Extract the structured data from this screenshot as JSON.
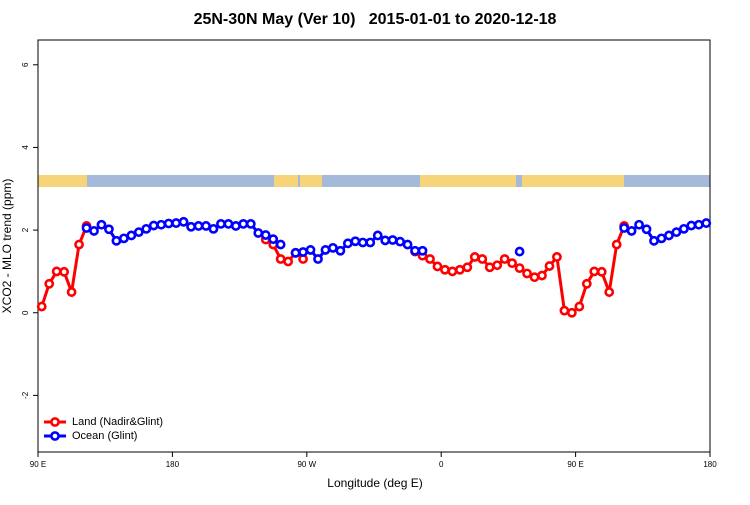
{
  "chart_data": {
    "type": "line",
    "title": "25N-30N May (Ver 10)   2015-01-01 to 2020-12-18",
    "x_label": "Longitude (deg E)",
    "y_label": "XCO2 - MLO trend (ppm)",
    "x": [
      92.5,
      97.5,
      102.5,
      107.5,
      112.5,
      117.5,
      122.5,
      127.5,
      132.5,
      137.5,
      142.5,
      147.5,
      152.5,
      157.5,
      162.5,
      167.5,
      172.5,
      177.5,
      182.5,
      187.5,
      192.5,
      197.5,
      202.5,
      207.5,
      212.5,
      217.5,
      222.5,
      227.5,
      232.5,
      237.5,
      242.5,
      247.5,
      252.5,
      257.5,
      262.5,
      267.5,
      272.5,
      277.5,
      282.5,
      287.5,
      292.5,
      297.5,
      302.5,
      307.5,
      312.5,
      317.5,
      322.5,
      327.5,
      332.5,
      337.5,
      342.5,
      347.5,
      352.5,
      357.5,
      362.5,
      367.5,
      372.5,
      377.5,
      382.5,
      387.5,
      392.5,
      397.5,
      402.5,
      407.5,
      412.5,
      417.5,
      422.5,
      427.5,
      432.5,
      437.5,
      442.5,
      447.5,
      452.5,
      457.5,
      462.5,
      467.5,
      472.5,
      477.5,
      482.5,
      487.5,
      492.5,
      497.5,
      502.5,
      507.5,
      512.5,
      517.5,
      522.5,
      527.5,
      532.5,
      537.5
    ],
    "series": [
      {
        "name": "Land (Nadir&Glint)",
        "color": "#ff0000",
        "values": [
          0.15,
          0.7,
          1.0,
          0.99,
          0.5,
          1.65,
          2.1,
          null,
          null,
          null,
          null,
          null,
          null,
          null,
          null,
          null,
          null,
          null,
          null,
          null,
          null,
          null,
          null,
          null,
          null,
          null,
          null,
          null,
          null,
          null,
          1.77,
          1.65,
          1.3,
          1.24,
          1.45,
          1.3,
          null,
          null,
          null,
          null,
          null,
          null,
          null,
          null,
          null,
          null,
          null,
          null,
          null,
          null,
          1.48,
          1.38,
          1.3,
          1.12,
          1.04,
          1.0,
          1.04,
          1.1,
          1.35,
          1.3,
          1.1,
          1.15,
          1.3,
          1.2,
          1.08,
          0.95,
          0.86,
          0.9,
          1.13,
          1.35,
          0.05,
          0.0,
          0.15,
          0.7,
          1.0,
          0.99,
          0.5,
          1.65,
          2.1,
          null,
          null,
          null,
          null,
          null,
          null,
          null,
          null,
          null,
          null,
          null
        ]
      },
      {
        "name": "Ocean (Glint)",
        "color": "#0000ff",
        "values": [
          null,
          null,
          null,
          null,
          null,
          null,
          2.05,
          1.98,
          2.13,
          2.02,
          1.74,
          1.8,
          1.87,
          1.95,
          2.03,
          2.11,
          2.13,
          2.16,
          2.17,
          2.2,
          2.08,
          2.1,
          2.1,
          2.03,
          2.15,
          2.15,
          2.1,
          2.15,
          2.15,
          1.93,
          1.88,
          1.78,
          1.65,
          null,
          1.45,
          1.47,
          1.52,
          1.3,
          1.52,
          1.57,
          1.5,
          1.68,
          1.73,
          1.7,
          1.7,
          1.87,
          1.75,
          1.76,
          1.72,
          1.65,
          1.5,
          1.5,
          null,
          null,
          null,
          null,
          null,
          null,
          null,
          null,
          null,
          null,
          null,
          null,
          1.48,
          null,
          null,
          null,
          null,
          null,
          null,
          null,
          null,
          null,
          null,
          null,
          null,
          null,
          2.05,
          1.98,
          2.13,
          2.02,
          1.74,
          1.8,
          1.87,
          1.95,
          2.03,
          2.11,
          2.13,
          2.17
        ]
      }
    ],
    "xlim": [
      90,
      540
    ],
    "xticks": [
      {
        "value": 90,
        "label": "90 E"
      },
      180,
      {
        "value": 270,
        "label": "90 W"
      },
      {
        "value": 360,
        "label": "0"
      },
      {
        "value": 450,
        "label": "90 E"
      },
      {
        "value": 540,
        "label": "180"
      }
    ],
    "ylim": [
      -3.37,
      6.6
    ],
    "yticks": [
      -2,
      0,
      2,
      4,
      6
    ],
    "legend": "bottom-left"
  }
}
